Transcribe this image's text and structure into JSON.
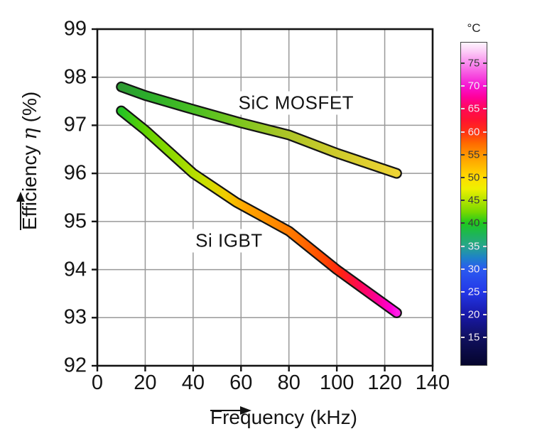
{
  "chart_data": {
    "type": "line",
    "title": "",
    "xlabel": "Frequency (kHz)",
    "ylabel": "Efficiency η (%)",
    "ylabel_parts": {
      "prefix": "Efficiency ",
      "symbol": "η",
      "suffix": " (%)"
    },
    "xlim": [
      0,
      140
    ],
    "ylim": [
      92,
      99
    ],
    "xticks": [
      0,
      20,
      40,
      60,
      80,
      100,
      120,
      140
    ],
    "yticks": [
      99,
      98,
      97,
      96,
      95,
      94,
      93,
      92
    ],
    "grid": true,
    "legend_position": "inline-annotations",
    "series": [
      {
        "name": "SiC MOSFET",
        "slug": "sic-mosfet",
        "x": [
          10,
          20,
          40,
          60,
          80,
          100,
          125
        ],
        "y": [
          97.8,
          97.62,
          97.33,
          97.05,
          96.8,
          96.42,
          96.0
        ],
        "color_encodes": "junction temperature (°C)",
        "temperature_gradient": [
          {
            "offset": 0.0,
            "color": "#2E9B32"
          },
          {
            "offset": 0.09,
            "color": "#2BAD2B"
          },
          {
            "offset": 0.25,
            "color": "#46BE22"
          },
          {
            "offset": 0.43,
            "color": "#7CC61E"
          },
          {
            "offset": 0.58,
            "color": "#A8C526"
          },
          {
            "offset": 0.72,
            "color": "#C4C82A"
          },
          {
            "offset": 0.87,
            "color": "#DCCE2E"
          },
          {
            "offset": 1.0,
            "color": "#EED434"
          }
        ]
      },
      {
        "name": "Si IGBT",
        "slug": "si-igbt",
        "x": [
          10,
          20,
          40,
          58,
          80,
          100,
          125
        ],
        "y": [
          97.3,
          96.9,
          96.0,
          95.4,
          94.8,
          94.0,
          93.1
        ],
        "color_encodes": "junction temperature (°C)",
        "temperature_gradient": [
          {
            "offset": 0.0,
            "color": "#24C424"
          },
          {
            "offset": 0.09,
            "color": "#63D200"
          },
          {
            "offset": 0.2,
            "color": "#96DA00"
          },
          {
            "offset": 0.3,
            "color": "#C8E000"
          },
          {
            "offset": 0.38,
            "color": "#F0CC00"
          },
          {
            "offset": 0.45,
            "color": "#FFA500"
          },
          {
            "offset": 0.55,
            "color": "#FF8C00"
          },
          {
            "offset": 0.65,
            "color": "#FF6E00"
          },
          {
            "offset": 0.73,
            "color": "#FF4B00"
          },
          {
            "offset": 0.8,
            "color": "#FF2314"
          },
          {
            "offset": 0.86,
            "color": "#FF0A50"
          },
          {
            "offset": 0.93,
            "color": "#FB0098"
          },
          {
            "offset": 0.98,
            "color": "#FF00D8"
          },
          {
            "offset": 1.0,
            "color": "#FF1EE6"
          }
        ]
      }
    ],
    "annotations": [
      {
        "text": "SiC MOSFET",
        "x": 83,
        "y": 97.47
      },
      {
        "text": "Si IGBT",
        "x": 55,
        "y": 94.6
      }
    ],
    "colorbar": {
      "title": "°C",
      "range": [
        9,
        79.5
      ],
      "ticks": [
        {
          "value": 75,
          "dark": true
        },
        {
          "value": 70,
          "dark": false
        },
        {
          "value": 65,
          "dark": false
        },
        {
          "value": 60,
          "dark": false
        },
        {
          "value": 55,
          "dark": true
        },
        {
          "value": 50,
          "dark": true
        },
        {
          "value": 45,
          "dark": true
        },
        {
          "value": 40,
          "dark": true
        },
        {
          "value": 35,
          "dark": false
        },
        {
          "value": 30,
          "dark": false
        },
        {
          "value": 25,
          "dark": false
        },
        {
          "value": 20,
          "dark": false
        },
        {
          "value": 15,
          "dark": false
        }
      ],
      "gradient": [
        {
          "offset": 0.0,
          "color": "#05052D"
        },
        {
          "offset": 0.085,
          "color": "#10105F"
        },
        {
          "offset": 0.156,
          "color": "#1818A8"
        },
        {
          "offset": 0.227,
          "color": "#2338E8"
        },
        {
          "offset": 0.298,
          "color": "#2B5AF0"
        },
        {
          "offset": 0.333,
          "color": "#1E82C8"
        },
        {
          "offset": 0.369,
          "color": "#28A58C"
        },
        {
          "offset": 0.404,
          "color": "#1EB45A"
        },
        {
          "offset": 0.44,
          "color": "#1EC81E"
        },
        {
          "offset": 0.475,
          "color": "#78D800"
        },
        {
          "offset": 0.511,
          "color": "#B4E400"
        },
        {
          "offset": 0.546,
          "color": "#EEF000"
        },
        {
          "offset": 0.582,
          "color": "#FFDC00"
        },
        {
          "offset": 0.617,
          "color": "#FFB900"
        },
        {
          "offset": 0.652,
          "color": "#FF9600"
        },
        {
          "offset": 0.688,
          "color": "#FF6A00"
        },
        {
          "offset": 0.723,
          "color": "#FF3214"
        },
        {
          "offset": 0.759,
          "color": "#FF1430"
        },
        {
          "offset": 0.794,
          "color": "#FF0A55"
        },
        {
          "offset": 0.83,
          "color": "#FF0099"
        },
        {
          "offset": 0.865,
          "color": "#F614D2"
        },
        {
          "offset": 0.901,
          "color": "#F750E0"
        },
        {
          "offset": 0.936,
          "color": "#F98CEE"
        },
        {
          "offset": 0.972,
          "color": "#FCCCF6"
        },
        {
          "offset": 1.0,
          "color": "#FEF4FE"
        }
      ]
    },
    "style": {
      "grid_color": "#999999",
      "frame_color": "#141414",
      "curve_outline_color": "#141414"
    }
  }
}
